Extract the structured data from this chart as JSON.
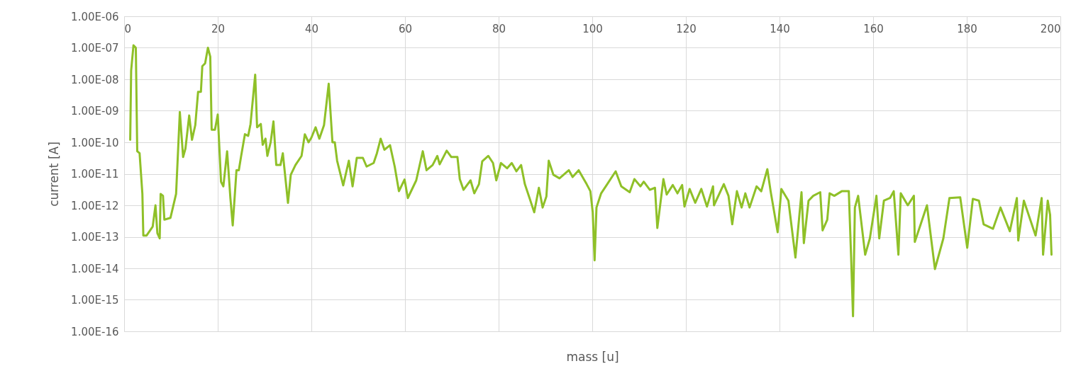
{
  "chart_data": {
    "type": "line",
    "xlabel": "mass [u]",
    "ylabel": "current [A]",
    "xlim": [
      0,
      200
    ],
    "xticks": [
      0,
      20,
      40,
      60,
      80,
      100,
      120,
      140,
      160,
      180,
      200
    ],
    "ylim": [
      1e-16,
      1e-06
    ],
    "log": "y",
    "yticks": [
      {
        "value": 1e-16,
        "label": "1.00E-16"
      },
      {
        "value": 1e-15,
        "label": "1.00E-15"
      },
      {
        "value": 1e-14,
        "label": "1.00E-14"
      },
      {
        "value": 1e-13,
        "label": "1.00E-13"
      },
      {
        "value": 1e-12,
        "label": "1.00E-12"
      },
      {
        "value": 1e-11,
        "label": "1.00E-11"
      },
      {
        "value": 1e-10,
        "label": "1.00E-10"
      },
      {
        "value": 1e-09,
        "label": "1.00E-09"
      },
      {
        "value": 1e-08,
        "label": "1.00E-08"
      },
      {
        "value": 1e-07,
        "label": "1.00E-07"
      },
      {
        "value": 1e-06,
        "label": "1.00E-06"
      }
    ],
    "grid": true,
    "legend": false,
    "marker": "none",
    "line_style": "solid",
    "series": [
      {
        "color": "#8fc028",
        "x": [
          1.3,
          1.5,
          2.0,
          2.5,
          2.8,
          3.3,
          3.9,
          4.1,
          4.8,
          6.1,
          6.7,
          7.1,
          7.6,
          7.8,
          8.3,
          8.6,
          9.9,
          11.1,
          11.9,
          12.6,
          13.1,
          13.9,
          14.5,
          15.2,
          15.8,
          16.4,
          16.7,
          17.3,
          17.9,
          18.4,
          18.7,
          19.4,
          20.0,
          20.7,
          21.2,
          22.0,
          22.7,
          23.2,
          24.0,
          24.5,
          25.0,
          25.8,
          26.5,
          27.0,
          28.0,
          28.4,
          29.2,
          29.6,
          30.2,
          30.6,
          31.3,
          31.9,
          32.5,
          33.4,
          33.9,
          35.0,
          35.6,
          36.6,
          37.9,
          38.6,
          39.4,
          40.0,
          40.9,
          41.7,
          42.7,
          43.7,
          44.5,
          45.0,
          45.5,
          46.8,
          48.0,
          48.8,
          49.7,
          51.0,
          51.8,
          53.3,
          54.0,
          54.8,
          55.6,
          56.8,
          57.8,
          58.7,
          59.9,
          60.6,
          62.4,
          63.8,
          64.6,
          65.9,
          66.9,
          67.4,
          68.9,
          69.9,
          71.2,
          71.7,
          72.5,
          74.0,
          74.8,
          75.8,
          76.5,
          77.8,
          78.8,
          79.5,
          80.5,
          81.8,
          82.8,
          83.8,
          84.8,
          85.6,
          86.6,
          87.6,
          88.6,
          89.4,
          90.2,
          90.7,
          91.7,
          93.0,
          95.0,
          95.8,
          97.1,
          98.8,
          99.6,
          100.1,
          100.5,
          100.9,
          101.9,
          103.2,
          105.0,
          106.2,
          108.0,
          109.0,
          110.3,
          111.0,
          112.3,
          113.4,
          113.9,
          115.2,
          115.9,
          117.2,
          118.2,
          119.2,
          119.7,
          120.8,
          122.0,
          123.3,
          124.5,
          125.8,
          126.0,
          128.1,
          129.1,
          129.9,
          130.9,
          131.9,
          132.7,
          133.6,
          135.1,
          136.1,
          137.4,
          138.1,
          139.6,
          140.4,
          141.9,
          143.4,
          144.7,
          145.2,
          146.2,
          147.2,
          148.7,
          149.2,
          150.2,
          150.7,
          151.7,
          153.3,
          154.8,
          155.3,
          155.7,
          156.1,
          156.8,
          158.3,
          159.3,
          160.7,
          161.3,
          162.3,
          163.6,
          164.4,
          165.4,
          165.9,
          167.4,
          168.7,
          168.9,
          171.5,
          173.2,
          175.0,
          176.3,
          178.6,
          180.1,
          181.3,
          182.6,
          183.6,
          185.6,
          187.2,
          189.2,
          190.7,
          191.0,
          192.2,
          194.7,
          196.0,
          196.3,
          197.3,
          197.8,
          198.1
        ],
        "values": [
          1.2e-10,
          1.9e-08,
          1.2e-07,
          1e-07,
          5.2e-11,
          4.5e-11,
          2.3e-12,
          1.1e-13,
          1.1e-13,
          2.1e-13,
          1e-12,
          1.3e-13,
          8.9e-14,
          2.3e-12,
          2e-12,
          3.5e-13,
          4e-13,
          2.3e-12,
          9.1e-10,
          3.4e-11,
          6.3e-11,
          7.1e-10,
          1.2e-10,
          3.5e-10,
          4e-09,
          4e-09,
          2.6e-08,
          3.2e-08,
          1e-07,
          5.2e-08,
          2.5e-10,
          2.5e-10,
          7.6e-10,
          5.6e-12,
          4e-12,
          5.2e-11,
          1.7e-12,
          2.3e-13,
          1.3e-11,
          1.3e-11,
          3.7e-11,
          1.8e-10,
          1.6e-10,
          3.8e-10,
          1.4e-08,
          3e-10,
          3.8e-10,
          8.3e-11,
          1.3e-10,
          3.7e-11,
          1e-10,
          4.6e-10,
          1.9e-11,
          1.9e-11,
          4.5e-11,
          1.2e-12,
          9.3e-12,
          1.9e-11,
          3.7e-11,
          1.8e-10,
          1e-10,
          1.4e-10,
          3e-10,
          1.3e-10,
          3.5e-10,
          7.2e-09,
          1e-10,
          1e-10,
          2.6e-11,
          4.3e-12,
          2.6e-11,
          4e-12,
          3.2e-11,
          3.2e-11,
          1.7e-11,
          2.2e-11,
          4.5e-11,
          1.3e-10,
          5.8e-11,
          8.1e-11,
          1.7e-11,
          2.8e-12,
          6.6e-12,
          1.7e-12,
          6.2e-12,
          5.2e-11,
          1.3e-11,
          1.9e-11,
          3.7e-11,
          2e-11,
          5.4e-11,
          3.4e-11,
          3.4e-11,
          6.8e-12,
          3.1e-12,
          6.2e-12,
          2.4e-12,
          4.7e-12,
          2.5e-11,
          3.7e-11,
          2.2e-11,
          6.2e-12,
          2.2e-11,
          1.5e-11,
          2.2e-11,
          1.2e-11,
          1.9e-11,
          4.7e-12,
          1.7e-12,
          6e-13,
          3.6e-12,
          8.5e-13,
          1.9e-12,
          2.6e-11,
          9.3e-12,
          7.2e-12,
          1.3e-11,
          7.9e-12,
          1.3e-11,
          4.7e-12,
          2.8e-12,
          6e-13,
          1.8e-14,
          8.5e-13,
          2.4e-12,
          4.7e-12,
          1.2e-11,
          4e-12,
          2.6e-12,
          6.8e-12,
          4e-12,
          5.6e-12,
          3.1e-12,
          3.6e-12,
          1.9e-13,
          6.8e-12,
          2.2e-12,
          4.4e-12,
          2.4e-12,
          4.4e-12,
          9.1e-13,
          3.3e-12,
          1.2e-12,
          3.3e-12,
          9.1e-13,
          4e-12,
          1e-12,
          4.7e-12,
          2e-12,
          2.5e-13,
          2.8e-12,
          8.5e-13,
          2.4e-12,
          8.5e-13,
          4e-12,
          2.8e-12,
          1.4e-11,
          2.8e-12,
          1.4e-13,
          3.3e-12,
          1.4e-12,
          2.2e-14,
          2.6e-12,
          6.3e-14,
          1.4e-12,
          2e-12,
          2.6e-12,
          1.6e-13,
          3.5e-13,
          2.4e-12,
          2e-12,
          2.8e-12,
          2.8e-12,
          2.2e-14,
          3e-16,
          8.5e-13,
          2e-12,
          2.7e-14,
          8.9e-14,
          2e-12,
          8.9e-14,
          1.4e-12,
          1.7e-12,
          2.8e-12,
          2.7e-14,
          2.4e-12,
          1e-12,
          2e-12,
          6.9e-14,
          1e-12,
          9.5e-15,
          8.9e-14,
          1.7e-12,
          1.8e-12,
          4.5e-14,
          1.6e-12,
          1.4e-12,
          2.5e-13,
          1.8e-13,
          8.5e-13,
          1.5e-13,
          1.7e-12,
          7.6e-14,
          1.4e-12,
          1.1e-13,
          1.7e-12,
          2.7e-14,
          1.4e-12,
          5e-13,
          2.7e-14
        ]
      }
    ]
  }
}
